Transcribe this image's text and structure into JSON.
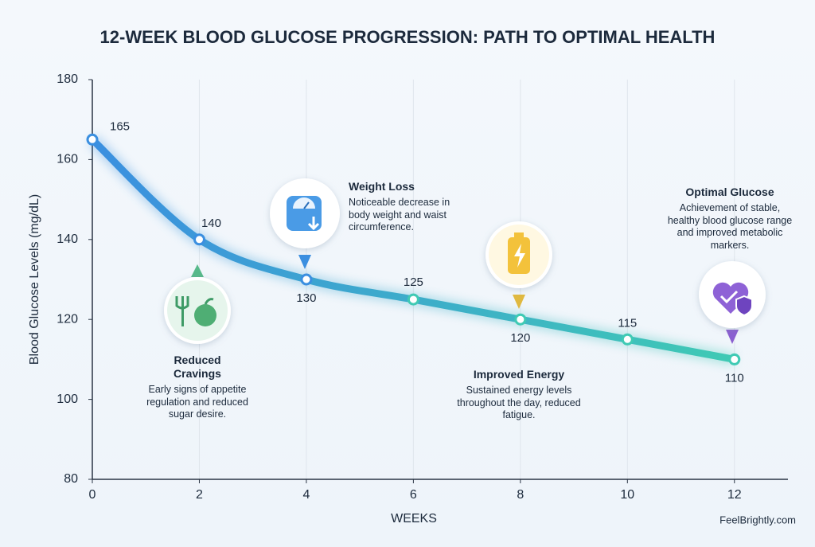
{
  "chart_data": {
    "type": "line",
    "title": "12-WEEK BLOOD GLUCOSE PROGRESSION: PATH TO OPTIMAL HEALTH",
    "x_label": "WEEKS",
    "y_label": "Blood Glucose Levels (mg/dL)",
    "x": [
      0,
      2,
      4,
      6,
      8,
      10,
      12
    ],
    "values": [
      165,
      140,
      130,
      125,
      120,
      115,
      110
    ],
    "gradient": [
      "#3b8fe0",
      "#3fcab4"
    ],
    "xlim": [
      0,
      13
    ],
    "xticks": [
      0,
      2,
      4,
      6,
      8,
      10,
      12
    ],
    "ylim": [
      80,
      180
    ],
    "yticks": [
      80,
      100,
      120,
      140,
      160,
      180
    ],
    "grid": "x",
    "annotations": [
      {
        "title": "Reduced Cravings",
        "text": "Early signs of appetite regulation and reduced sugar desire."
      },
      {
        "title": "Weight Loss",
        "text": "Noticeable decrease in body weight and waist circumference."
      },
      {
        "title": "Improved Energy",
        "text": "Sustained energy levels throughout the day, reduced fatigue."
      },
      {
        "title": "Optimal Glucose",
        "text": "Achievement of stable, healthy blood glucose range and improved metabolic markers."
      }
    ],
    "source": "FeelBrightly.com"
  }
}
